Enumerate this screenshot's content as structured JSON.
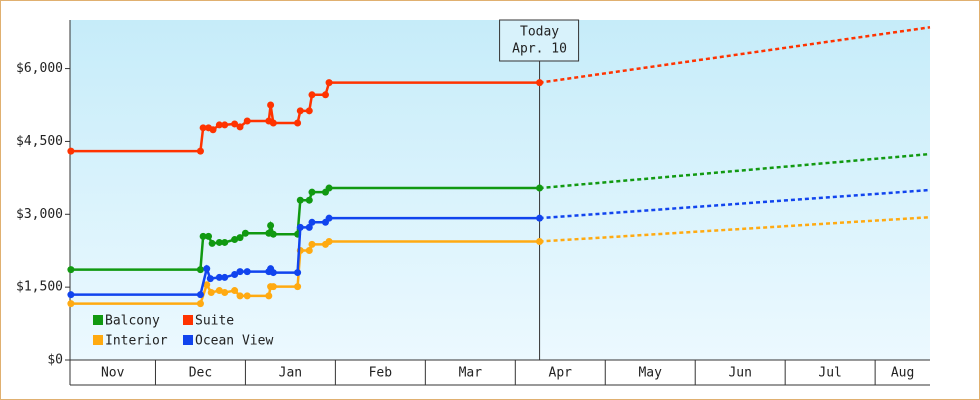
{
  "chart_data": {
    "type": "line",
    "xlim": [
      0.05,
      9.61
    ],
    "ylim": [
      0,
      7000
    ],
    "yticks": [
      {
        "value": 0,
        "label": "$0"
      },
      {
        "value": 1500,
        "label": "$1,500"
      },
      {
        "value": 3000,
        "label": "$3,000"
      },
      {
        "value": 4500,
        "label": "$4,500"
      },
      {
        "value": 6000,
        "label": "$6,000"
      }
    ],
    "xticks": [
      {
        "value": 0,
        "label": "Nov"
      },
      {
        "value": 1,
        "label": "Dec"
      },
      {
        "value": 2,
        "label": "Jan"
      },
      {
        "value": 3,
        "label": "Feb"
      },
      {
        "value": 4,
        "label": "Mar"
      },
      {
        "value": 5,
        "label": "Apr"
      },
      {
        "value": 6,
        "label": "May"
      },
      {
        "value": 7,
        "label": "Jun"
      },
      {
        "value": 8,
        "label": "Jul"
      },
      {
        "value": 9,
        "label": "Aug"
      }
    ],
    "today": {
      "x": 5.27,
      "labels": [
        "Today",
        "Apr. 10"
      ]
    },
    "series": [
      {
        "name": "Balcony",
        "color": "#119911",
        "x": [
          0.06,
          1.5,
          1.53,
          1.59,
          1.63,
          1.71,
          1.77,
          1.88,
          1.94,
          2.0,
          2.26,
          2.28,
          2.31,
          2.58,
          2.61,
          2.71,
          2.74,
          2.89,
          2.93,
          5.27
        ],
        "values": [
          1860,
          1860,
          2545,
          2545,
          2400,
          2420,
          2420,
          2480,
          2520,
          2610,
          2610,
          2770,
          2590,
          2590,
          3290,
          3290,
          3455,
          3455,
          3540,
          3540
        ],
        "forecast": {
          "x": 9.61,
          "value": 4240
        }
      },
      {
        "name": "Suite",
        "color": "#ff3300",
        "x": [
          0.06,
          1.5,
          1.53,
          1.59,
          1.64,
          1.71,
          1.77,
          1.88,
          1.94,
          2.02,
          2.26,
          2.28,
          2.31,
          2.58,
          2.61,
          2.71,
          2.74,
          2.89,
          2.93,
          5.27
        ],
        "values": [
          4300,
          4300,
          4780,
          4780,
          4740,
          4840,
          4840,
          4860,
          4800,
          4920,
          4920,
          5250,
          4880,
          4880,
          5130,
          5130,
          5460,
          5460,
          5710,
          5710
        ],
        "forecast": {
          "x": 9.61,
          "value": 6850
        }
      },
      {
        "name": "Interior",
        "color": "#ffaa11",
        "x": [
          0.06,
          1.5,
          1.57,
          1.62,
          1.71,
          1.77,
          1.88,
          1.94,
          2.02,
          2.26,
          2.28,
          2.31,
          2.58,
          2.61,
          2.71,
          2.74,
          2.89,
          2.93,
          5.27
        ],
        "values": [
          1160,
          1160,
          1550,
          1390,
          1430,
          1390,
          1430,
          1320,
          1320,
          1320,
          1510,
          1510,
          1510,
          2255,
          2255,
          2380,
          2380,
          2440,
          2440
        ],
        "forecast": {
          "x": 9.61,
          "value": 2940
        }
      },
      {
        "name": "Ocean View",
        "color": "#1144ee",
        "x": [
          0.06,
          1.5,
          1.57,
          1.61,
          1.71,
          1.77,
          1.88,
          1.94,
          2.02,
          2.26,
          2.28,
          2.31,
          2.58,
          2.61,
          2.71,
          2.74,
          2.89,
          2.93,
          5.27
        ],
        "values": [
          1345,
          1345,
          1880,
          1675,
          1700,
          1700,
          1760,
          1820,
          1820,
          1820,
          1880,
          1800,
          1800,
          2730,
          2730,
          2835,
          2835,
          2920,
          2920
        ],
        "forecast": {
          "x": 9.61,
          "value": 3500
        }
      }
    ]
  }
}
